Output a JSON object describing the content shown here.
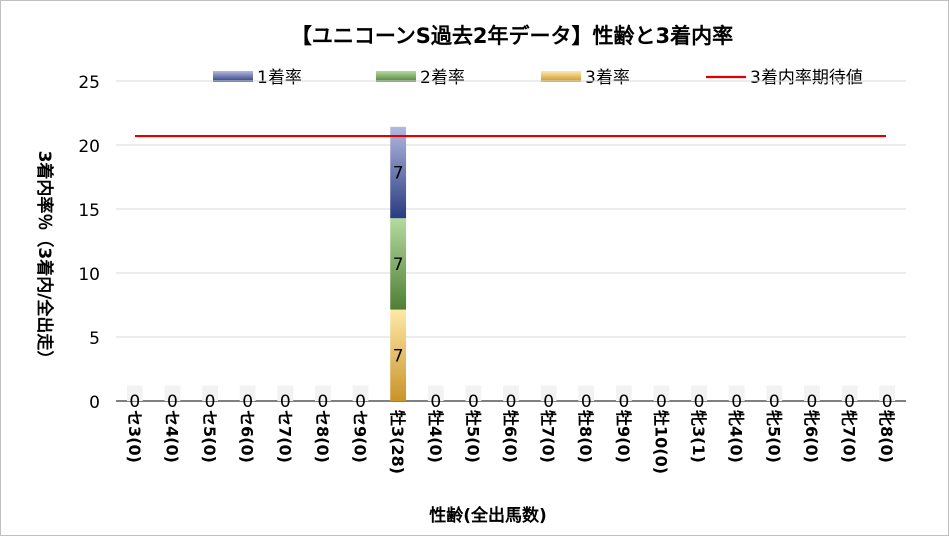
{
  "chart_data": {
    "type": "bar",
    "stacked": true,
    "title": "【ユニコーンS過去2年データ】性齢と3着内率",
    "xlabel": "性齢(全出馬数)",
    "ylabel": "3着内率％（3着内/全出走）",
    "ylim": [
      0,
      25
    ],
    "yticks": [
      "0",
      "5",
      "10",
      "15",
      "20",
      "25"
    ],
    "grid": true,
    "legend_position": "top",
    "categories": [
      "セ3(0)",
      "セ4(0)",
      "セ5(0)",
      "セ6(0)",
      "セ7(0)",
      "セ8(0)",
      "セ9(0)",
      "牡3(28)",
      "牡4(0)",
      "牡5(0)",
      "牡6(0)",
      "牡7(0)",
      "牡8(0)",
      "牡9(0)",
      "牡10(0)",
      "牝3(1)",
      "牝4(0)",
      "牝5(0)",
      "牝6(0)",
      "牝7(0)",
      "牝8(0)"
    ],
    "series": [
      {
        "name": "3着率",
        "color": "#d9a02e",
        "values": [
          0,
          0,
          0,
          0,
          0,
          0,
          0,
          7.14,
          0,
          0,
          0,
          0,
          0,
          0,
          0,
          0,
          0,
          0,
          0,
          0,
          0
        ],
        "labels": [
          "0",
          "0",
          "0",
          "0",
          "0",
          "0",
          "0",
          "7",
          "0",
          "0",
          "0",
          "0",
          "0",
          "0",
          "0",
          "0",
          "0",
          "0",
          "0",
          "0",
          "0"
        ]
      },
      {
        "name": "2着率",
        "color": "#6aa84f",
        "values": [
          0,
          0,
          0,
          0,
          0,
          0,
          0,
          7.14,
          0,
          0,
          0,
          0,
          0,
          0,
          0,
          0,
          0,
          0,
          0,
          0,
          0
        ],
        "labels": [
          "",
          "",
          "",
          "",
          "",
          "",
          "",
          "7",
          "",
          "",
          "",
          "",
          "",
          "",
          "",
          "",
          "",
          "",
          "",
          "",
          ""
        ]
      },
      {
        "name": "1着率",
        "color": "#3c4d9a",
        "values": [
          0,
          0,
          0,
          0,
          0,
          0,
          0,
          7.14,
          0,
          0,
          0,
          0,
          0,
          0,
          0,
          0,
          0,
          0,
          0,
          0,
          0
        ],
        "labels": [
          "",
          "",
          "",
          "",
          "",
          "",
          "",
          "7",
          "",
          "",
          "",
          "",
          "",
          "",
          "",
          "",
          "",
          "",
          "",
          "",
          ""
        ]
      }
    ],
    "legend": [
      "1着率",
      "2着率",
      "3着率",
      "3着内率期待値"
    ],
    "reference_line": {
      "name": "3着内率期待値",
      "value": 20.7,
      "color": "#e00000"
    }
  }
}
